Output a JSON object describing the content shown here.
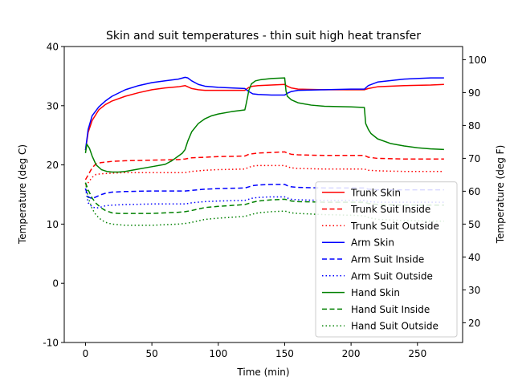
{
  "chart_data": {
    "type": "line",
    "title": "Skin and suit temperatures - thin suit high heat transfer",
    "xlabel": "Time (min)",
    "ylabel": "Temperature (deg C)",
    "ylabel_right": "Temperature (deg F)",
    "xlim": [
      -16,
      284
    ],
    "ylim": [
      -10,
      40
    ],
    "ylim_right": [
      14,
      104
    ],
    "xticks": [
      0,
      50,
      100,
      150,
      200,
      250
    ],
    "yticks": [
      -10,
      0,
      10,
      20,
      30,
      40
    ],
    "yticks_right": [
      20,
      30,
      40,
      50,
      60,
      70,
      80,
      90,
      100
    ],
    "grid": false,
    "legend_position": "bottom-right",
    "series": [
      {
        "name": "Trunk Skin",
        "color": "#ff0000",
        "dash": "solid",
        "x": [
          0,
          2,
          5,
          10,
          15,
          20,
          30,
          40,
          50,
          60,
          70,
          75,
          78,
          80,
          85,
          90,
          100,
          110,
          120,
          123,
          126,
          130,
          140,
          150,
          152,
          155,
          160,
          180,
          200,
          210,
          213,
          220,
          240,
          260,
          270
        ],
        "y": [
          22.5,
          25.5,
          27.5,
          29.3,
          30.2,
          30.8,
          31.6,
          32.2,
          32.7,
          33.0,
          33.2,
          33.4,
          33.1,
          32.9,
          32.7,
          32.6,
          32.6,
          32.6,
          32.6,
          33.1,
          33.3,
          33.4,
          33.5,
          33.6,
          33.3,
          33.0,
          32.8,
          32.7,
          32.7,
          32.7,
          32.9,
          33.2,
          33.4,
          33.5,
          33.6
        ]
      },
      {
        "name": "Trunk Suit Inside",
        "color": "#ff0000",
        "dash": "dashed",
        "x": [
          0,
          2,
          5,
          8,
          12,
          20,
          30,
          50,
          70,
          75,
          80,
          90,
          100,
          120,
          123,
          126,
          130,
          140,
          150,
          152,
          155,
          160,
          180,
          200,
          210,
          213,
          220,
          240,
          260,
          270
        ],
        "y": [
          17.5,
          18.3,
          19.5,
          20.2,
          20.4,
          20.6,
          20.7,
          20.8,
          20.9,
          21.0,
          21.2,
          21.3,
          21.4,
          21.5,
          21.8,
          21.9,
          22.0,
          22.1,
          22.2,
          22.0,
          21.8,
          21.7,
          21.6,
          21.6,
          21.6,
          21.3,
          21.1,
          21.0,
          21.0,
          21.0
        ]
      },
      {
        "name": "Trunk Suit Outside",
        "color": "#ff0000",
        "dash": "dotted",
        "x": [
          0,
          2,
          5,
          8,
          12,
          20,
          30,
          50,
          70,
          75,
          80,
          90,
          100,
          120,
          123,
          126,
          130,
          140,
          150,
          152,
          155,
          160,
          180,
          200,
          210,
          213,
          220,
          240,
          260,
          270
        ],
        "y": [
          16.5,
          17.0,
          17.9,
          18.4,
          18.5,
          18.6,
          18.7,
          18.7,
          18.7,
          18.7,
          18.9,
          19.1,
          19.2,
          19.3,
          19.6,
          19.8,
          19.9,
          19.9,
          19.9,
          19.7,
          19.5,
          19.4,
          19.3,
          19.3,
          19.3,
          19.1,
          19.0,
          18.9,
          18.9,
          18.9
        ]
      },
      {
        "name": "Arm Skin",
        "color": "#0000ff",
        "dash": "solid",
        "x": [
          0,
          2,
          5,
          10,
          15,
          20,
          30,
          40,
          50,
          60,
          70,
          75,
          77,
          80,
          85,
          90,
          100,
          110,
          120,
          123,
          126,
          130,
          140,
          150,
          152,
          155,
          160,
          180,
          200,
          210,
          213,
          220,
          240,
          260,
          270
        ],
        "y": [
          22.5,
          26.0,
          28.3,
          29.8,
          30.8,
          31.6,
          32.7,
          33.4,
          33.9,
          34.2,
          34.5,
          34.8,
          34.7,
          34.2,
          33.6,
          33.3,
          33.1,
          33.0,
          32.9,
          32.4,
          32.0,
          31.9,
          31.8,
          31.8,
          32.1,
          32.4,
          32.6,
          32.7,
          32.8,
          32.8,
          33.4,
          34.0,
          34.5,
          34.7,
          34.7
        ]
      },
      {
        "name": "Arm Suit Inside",
        "color": "#0000ff",
        "dash": "dashed",
        "x": [
          0,
          2,
          5,
          8,
          12,
          15,
          20,
          30,
          50,
          70,
          75,
          80,
          90,
          100,
          120,
          123,
          126,
          130,
          140,
          150,
          152,
          155,
          160,
          180,
          200,
          210,
          213,
          220,
          240,
          260,
          270
        ],
        "y": [
          16.0,
          14.6,
          14.3,
          14.6,
          15.0,
          15.2,
          15.4,
          15.5,
          15.6,
          15.6,
          15.6,
          15.7,
          15.9,
          16.0,
          16.1,
          16.3,
          16.5,
          16.6,
          16.7,
          16.7,
          16.5,
          16.3,
          16.2,
          16.1,
          16.1,
          16.1,
          15.9,
          15.8,
          15.8,
          15.8,
          15.8
        ]
      },
      {
        "name": "Arm Suit Outside",
        "color": "#0000ff",
        "dash": "dotted",
        "x": [
          0,
          2,
          5,
          8,
          12,
          15,
          20,
          30,
          50,
          70,
          75,
          80,
          90,
          100,
          120,
          123,
          126,
          130,
          140,
          150,
          152,
          155,
          160,
          180,
          200,
          210,
          213,
          220,
          240,
          260,
          270
        ],
        "y": [
          16.0,
          13.6,
          12.9,
          12.7,
          12.9,
          13.1,
          13.2,
          13.3,
          13.4,
          13.4,
          13.4,
          13.6,
          13.8,
          13.9,
          14.0,
          14.2,
          14.4,
          14.5,
          14.6,
          14.6,
          14.4,
          14.2,
          14.1,
          14.0,
          14.0,
          14.0,
          13.8,
          13.7,
          13.7,
          13.7,
          13.7
        ]
      },
      {
        "name": "Hand Skin",
        "color": "#008000",
        "dash": "solid",
        "x": [
          0,
          1,
          3,
          5,
          8,
          12,
          16,
          20,
          25,
          30,
          40,
          50,
          60,
          65,
          70,
          73,
          75,
          77,
          80,
          85,
          90,
          95,
          100,
          110,
          120,
          121,
          122,
          123,
          125,
          128,
          132,
          140,
          150,
          151,
          152,
          155,
          160,
          170,
          180,
          200,
          210,
          211,
          213,
          215,
          220,
          230,
          240,
          250,
          260,
          270
        ],
        "y": [
          22.0,
          23.5,
          22.8,
          21.5,
          20.0,
          19.2,
          18.9,
          18.8,
          18.8,
          18.9,
          19.3,
          19.7,
          20.1,
          20.7,
          21.5,
          22.0,
          22.6,
          24.0,
          25.6,
          27.0,
          27.8,
          28.3,
          28.6,
          29.0,
          29.3,
          30.3,
          31.4,
          32.6,
          33.7,
          34.2,
          34.4,
          34.6,
          34.7,
          32.5,
          31.6,
          31.0,
          30.5,
          30.1,
          29.9,
          29.8,
          29.7,
          27.0,
          26.0,
          25.3,
          24.4,
          23.6,
          23.2,
          22.9,
          22.7,
          22.6
        ]
      },
      {
        "name": "Hand Suit Inside",
        "color": "#008000",
        "dash": "dashed",
        "x": [
          0,
          2,
          5,
          8,
          12,
          15,
          20,
          25,
          30,
          50,
          60,
          70,
          75,
          80,
          90,
          100,
          120,
          123,
          126,
          130,
          140,
          150,
          152,
          155,
          160,
          180,
          200,
          210,
          213,
          220,
          240,
          260,
          270
        ],
        "y": [
          17.0,
          15.8,
          14.4,
          13.5,
          12.7,
          12.3,
          11.9,
          11.8,
          11.8,
          11.8,
          11.9,
          12.0,
          12.1,
          12.3,
          12.8,
          13.0,
          13.3,
          13.5,
          13.7,
          13.9,
          14.1,
          14.2,
          14.1,
          13.9,
          13.8,
          13.7,
          13.7,
          13.7,
          13.5,
          13.3,
          13.2,
          13.2,
          13.2
        ]
      },
      {
        "name": "Hand Suit Outside",
        "color": "#008000",
        "dash": "dotted",
        "x": [
          0,
          2,
          5,
          8,
          12,
          15,
          20,
          25,
          30,
          50,
          60,
          70,
          75,
          80,
          90,
          100,
          120,
          123,
          126,
          130,
          140,
          150,
          152,
          155,
          160,
          180,
          200,
          210,
          213,
          220,
          240,
          260,
          270
        ],
        "y": [
          17.0,
          14.5,
          12.6,
          11.5,
          10.7,
          10.3,
          10.0,
          9.9,
          9.8,
          9.8,
          9.9,
          10.0,
          10.1,
          10.3,
          10.8,
          11.0,
          11.3,
          11.5,
          11.7,
          11.9,
          12.1,
          12.2,
          12.1,
          11.9,
          11.8,
          11.6,
          11.5,
          11.4,
          11.1,
          10.8,
          10.6,
          10.5,
          10.5
        ]
      }
    ]
  }
}
